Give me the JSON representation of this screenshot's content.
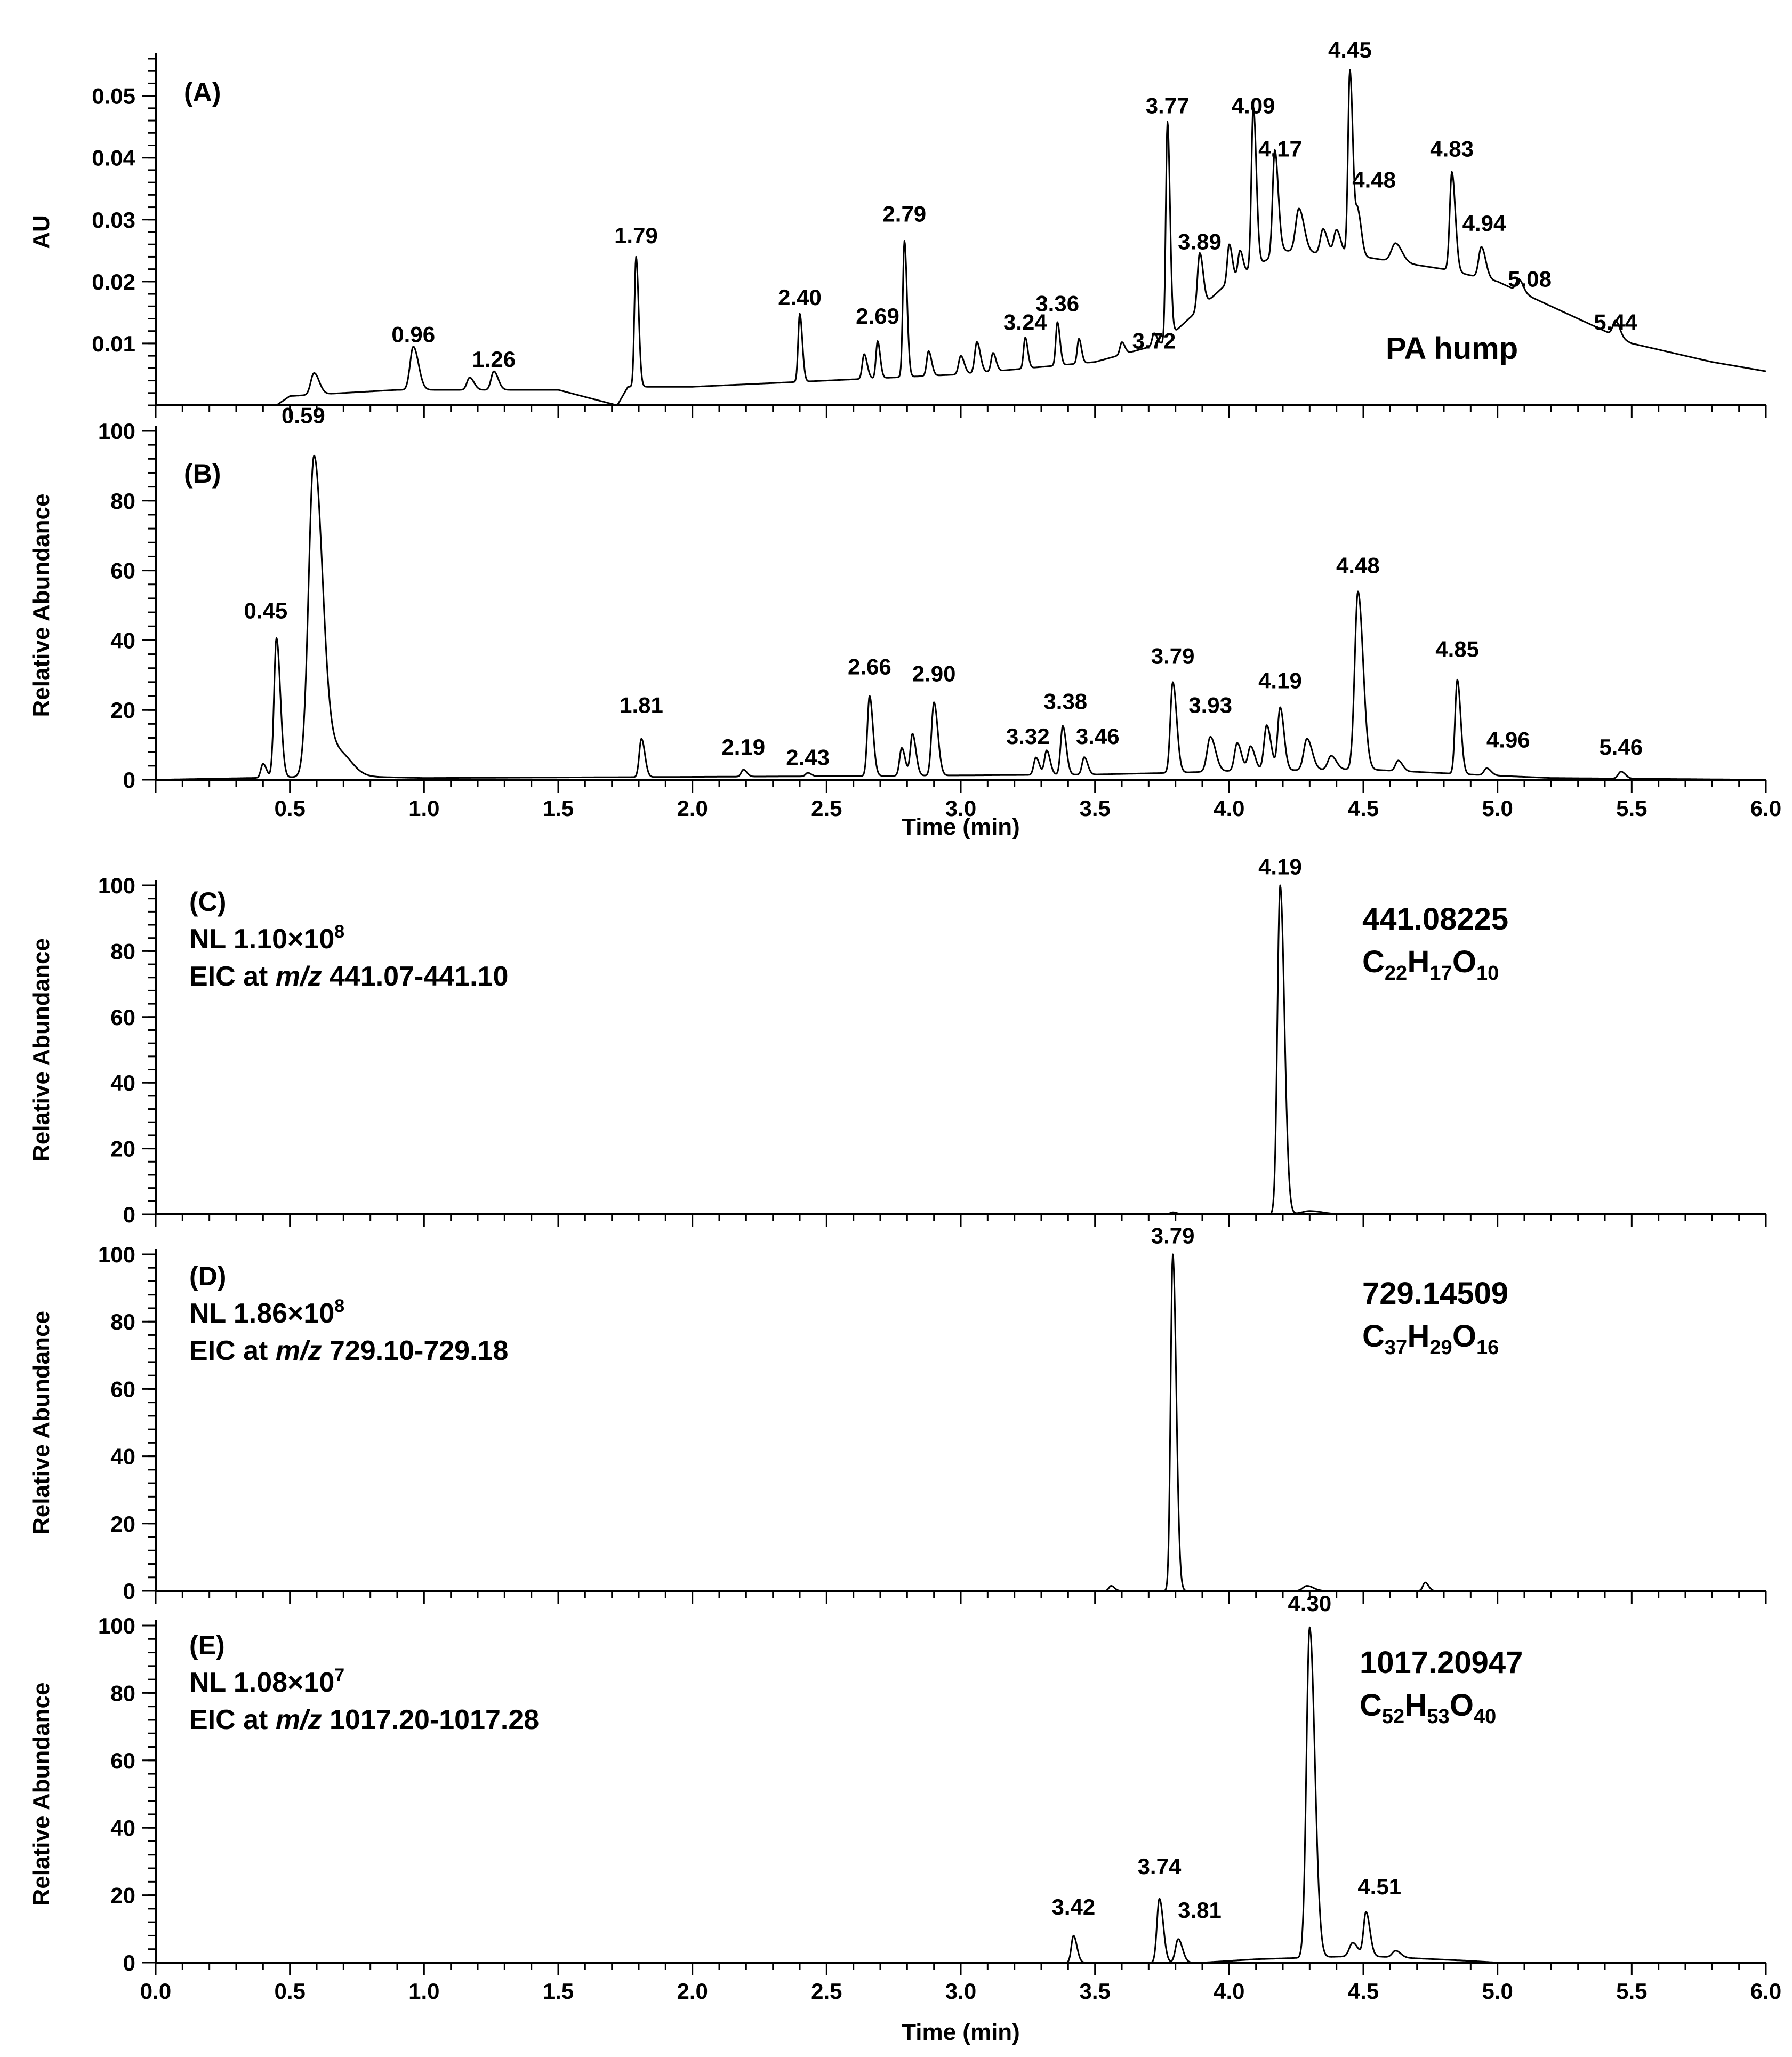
{
  "chart_data": [
    {
      "id": "A",
      "type": "line",
      "panel_label": "(A)",
      "ylabel": "AU",
      "xlabel": "",
      "xlim": [
        0,
        6
      ],
      "ylim": [
        0,
        0.056
      ],
      "yticks": [
        "0.01",
        "0.02",
        "0.03",
        "0.04",
        "0.05"
      ],
      "ytick_values": [
        0.01,
        0.02,
        0.03,
        0.04,
        0.05
      ],
      "xticks": [],
      "xtick_values": [],
      "baseline": [
        [
          0,
          0
        ],
        [
          0.45,
          0
        ],
        [
          0.5,
          0.0015
        ],
        [
          0.9,
          0.0025
        ],
        [
          1.5,
          0.0025
        ],
        [
          1.72,
          0
        ],
        [
          1.76,
          0.003
        ],
        [
          2.0,
          0.003
        ],
        [
          2.5,
          0.004
        ],
        [
          3.0,
          0.005
        ],
        [
          3.5,
          0.007
        ],
        [
          3.75,
          0.01
        ],
        [
          4.0,
          0.02
        ],
        [
          4.2,
          0.025
        ],
        [
          4.5,
          0.024
        ],
        [
          4.8,
          0.022
        ],
        [
          5.0,
          0.02
        ],
        [
          5.3,
          0.014
        ],
        [
          5.5,
          0.01
        ],
        [
          5.8,
          0.007
        ],
        [
          6.0,
          0.0055
        ]
      ],
      "peaks": [
        {
          "t": 0.59,
          "h": 0.0035,
          "w": 0.012
        },
        {
          "t": 0.96,
          "h": 0.007,
          "w": 0.012
        },
        {
          "t": 1.17,
          "h": 0.002,
          "w": 0.01
        },
        {
          "t": 1.26,
          "h": 0.003,
          "w": 0.01
        },
        {
          "t": 1.79,
          "h": 0.021,
          "w": 0.006
        },
        {
          "t": 2.4,
          "h": 0.011,
          "w": 0.006
        },
        {
          "t": 2.64,
          "h": 0.004,
          "w": 0.007
        },
        {
          "t": 2.69,
          "h": 0.006,
          "w": 0.006
        },
        {
          "t": 2.79,
          "h": 0.022,
          "w": 0.006
        },
        {
          "t": 2.88,
          "h": 0.004,
          "w": 0.007
        },
        {
          "t": 3.0,
          "h": 0.003,
          "w": 0.008
        },
        {
          "t": 3.06,
          "h": 0.005,
          "w": 0.008
        },
        {
          "t": 3.12,
          "h": 0.003,
          "w": 0.007
        },
        {
          "t": 3.24,
          "h": 0.005,
          "w": 0.006
        },
        {
          "t": 3.36,
          "h": 0.007,
          "w": 0.006
        },
        {
          "t": 3.44,
          "h": 0.004,
          "w": 0.006
        },
        {
          "t": 3.6,
          "h": 0.002,
          "w": 0.007
        },
        {
          "t": 3.72,
          "h": 0.002,
          "w": 0.007
        },
        {
          "t": 3.77,
          "h": 0.035,
          "w": 0.006
        },
        {
          "t": 3.89,
          "h": 0.009,
          "w": 0.008
        },
        {
          "t": 4.0,
          "h": 0.006,
          "w": 0.007
        },
        {
          "t": 4.04,
          "h": 0.004,
          "w": 0.007
        },
        {
          "t": 4.09,
          "h": 0.026,
          "w": 0.007
        },
        {
          "t": 4.17,
          "h": 0.017,
          "w": 0.008
        },
        {
          "t": 4.26,
          "h": 0.007,
          "w": 0.012
        },
        {
          "t": 4.35,
          "h": 0.004,
          "w": 0.01
        },
        {
          "t": 4.4,
          "h": 0.004,
          "w": 0.01
        },
        {
          "t": 4.45,
          "h": 0.03,
          "w": 0.007
        },
        {
          "t": 4.48,
          "h": 0.007,
          "w": 0.008
        },
        {
          "t": 4.62,
          "h": 0.003,
          "w": 0.015
        },
        {
          "t": 4.83,
          "h": 0.016,
          "w": 0.008
        },
        {
          "t": 4.94,
          "h": 0.005,
          "w": 0.01
        },
        {
          "t": 5.08,
          "h": 0.002,
          "w": 0.01
        },
        {
          "t": 5.44,
          "h": 0.0025,
          "w": 0.01
        }
      ],
      "peak_labels": [
        {
          "text": "0.96",
          "t": 0.96,
          "y": 0.0095
        },
        {
          "text": "1.26",
          "t": 1.26,
          "y": 0.0055
        },
        {
          "text": "1.79",
          "t": 1.79,
          "y": 0.0255
        },
        {
          "text": "2.40",
          "t": 2.4,
          "y": 0.0155
        },
        {
          "text": "2.69",
          "t": 2.69,
          "y": 0.0125
        },
        {
          "text": "2.79",
          "t": 2.79,
          "y": 0.029
        },
        {
          "text": "3.24",
          "t": 3.24,
          "y": 0.0115
        },
        {
          "text": "3.36",
          "t": 3.36,
          "y": 0.0145
        },
        {
          "text": "3.72",
          "t": 3.72,
          "y": 0.0085
        },
        {
          "text": "3.77",
          "t": 3.77,
          "y": 0.0465
        },
        {
          "text": "3.89",
          "t": 3.89,
          "y": 0.0245
        },
        {
          "text": "4.09",
          "t": 4.09,
          "y": 0.0465
        },
        {
          "text": "4.17",
          "t": 4.19,
          "y": 0.0395
        },
        {
          "text": "4.45",
          "t": 4.45,
          "y": 0.0555
        },
        {
          "text": "4.48",
          "t": 4.54,
          "y": 0.0345
        },
        {
          "text": "4.83",
          "t": 4.83,
          "y": 0.0395
        },
        {
          "text": "4.94",
          "t": 4.95,
          "y": 0.0275
        },
        {
          "text": "5.08",
          "t": 5.12,
          "y": 0.0185
        },
        {
          "text": "5.44",
          "t": 5.44,
          "y": 0.0115
        }
      ],
      "annotations": [
        {
          "text": "PA hump",
          "t": 4.83,
          "y": 0.0075
        }
      ]
    },
    {
      "id": "B",
      "type": "line",
      "panel_label": "(B)",
      "ylabel": "Relative Abundance",
      "xlabel": "Time  (min)",
      "xlim": [
        0,
        6
      ],
      "ylim": [
        0,
        100
      ],
      "yticks": [
        "0",
        "20",
        "40",
        "60",
        "80",
        "100"
      ],
      "ytick_values": [
        0,
        20,
        40,
        60,
        80,
        100
      ],
      "xticks": [
        "0.5",
        "1.0",
        "1.5",
        "2.0",
        "2.5",
        "3.0",
        "3.5",
        "4.0",
        "4.5",
        "5.0",
        "5.5",
        "6.0"
      ],
      "xtick_values": [
        0.5,
        1.0,
        1.5,
        2.0,
        2.5,
        3.0,
        3.5,
        4.0,
        4.5,
        5.0,
        5.5,
        6.0
      ],
      "baseline": [
        [
          0,
          0
        ],
        [
          0.7,
          1
        ],
        [
          1.0,
          0.5
        ],
        [
          2.5,
          1
        ],
        [
          3.5,
          1.5
        ],
        [
          3.8,
          2
        ],
        [
          4.0,
          2.5
        ],
        [
          4.5,
          3
        ],
        [
          4.9,
          1.5
        ],
        [
          5.2,
          0.5
        ],
        [
          6.0,
          0
        ]
      ],
      "peaks": [
        {
          "t": 0.4,
          "h": 4,
          "w": 0.008
        },
        {
          "t": 0.45,
          "h": 40,
          "w": 0.009
        },
        {
          "t": 0.59,
          "h": 92,
          "w": 0.02
        },
        {
          "t": 0.68,
          "h": 7,
          "w": 0.03
        },
        {
          "t": 1.81,
          "h": 11,
          "w": 0.008
        },
        {
          "t": 2.19,
          "h": 2,
          "w": 0.008
        },
        {
          "t": 2.43,
          "h": 1,
          "w": 0.008
        },
        {
          "t": 2.66,
          "h": 23,
          "w": 0.008
        },
        {
          "t": 2.78,
          "h": 8,
          "w": 0.008
        },
        {
          "t": 2.82,
          "h": 12,
          "w": 0.008
        },
        {
          "t": 2.9,
          "h": 21,
          "w": 0.009
        },
        {
          "t": 3.28,
          "h": 5,
          "w": 0.008
        },
        {
          "t": 3.32,
          "h": 7,
          "w": 0.008
        },
        {
          "t": 3.38,
          "h": 14,
          "w": 0.008
        },
        {
          "t": 3.46,
          "h": 5,
          "w": 0.008
        },
        {
          "t": 3.79,
          "h": 26,
          "w": 0.009
        },
        {
          "t": 3.93,
          "h": 10,
          "w": 0.012
        },
        {
          "t": 4.03,
          "h": 8,
          "w": 0.01
        },
        {
          "t": 4.08,
          "h": 7,
          "w": 0.01
        },
        {
          "t": 4.14,
          "h": 13,
          "w": 0.01
        },
        {
          "t": 4.19,
          "h": 18,
          "w": 0.009
        },
        {
          "t": 4.29,
          "h": 9,
          "w": 0.012
        },
        {
          "t": 4.38,
          "h": 4,
          "w": 0.012
        },
        {
          "t": 4.48,
          "h": 51,
          "w": 0.012
        },
        {
          "t": 4.63,
          "h": 3,
          "w": 0.01
        },
        {
          "t": 4.85,
          "h": 27,
          "w": 0.008
        },
        {
          "t": 4.96,
          "h": 2,
          "w": 0.01
        },
        {
          "t": 5.46,
          "h": 2,
          "w": 0.01
        }
      ],
      "peak_labels": [
        {
          "text": "0.59",
          "t": 0.55,
          "y": 101
        },
        {
          "text": "0.45",
          "t": 0.41,
          "y": 45
        },
        {
          "text": "1.81",
          "t": 1.81,
          "y": 18
        },
        {
          "text": "2.19",
          "t": 2.19,
          "y": 6
        },
        {
          "text": "2.43",
          "t": 2.43,
          "y": 3
        },
        {
          "text": "2.66",
          "t": 2.66,
          "y": 29
        },
        {
          "text": "2.90",
          "t": 2.9,
          "y": 27
        },
        {
          "text": "3.32",
          "t": 3.25,
          "y": 9
        },
        {
          "text": "3.38",
          "t": 3.39,
          "y": 19
        },
        {
          "text": "3.46",
          "t": 3.51,
          "y": 9
        },
        {
          "text": "3.79",
          "t": 3.79,
          "y": 32
        },
        {
          "text": "3.93",
          "t": 3.93,
          "y": 18
        },
        {
          "text": "4.19",
          "t": 4.19,
          "y": 25
        },
        {
          "text": "4.48",
          "t": 4.48,
          "y": 58
        },
        {
          "text": "4.85",
          "t": 4.85,
          "y": 34
        },
        {
          "text": "4.96",
          "t": 5.04,
          "y": 8
        },
        {
          "text": "5.46",
          "t": 5.46,
          "y": 6
        }
      ],
      "annotations": []
    },
    {
      "id": "C",
      "type": "line",
      "panel_label": "(C)",
      "ylabel": "Relative Abundance",
      "xlabel": "",
      "xlim": [
        0,
        6
      ],
      "ylim": [
        0,
        100
      ],
      "info": {
        "nl": "NL 1.10×10",
        "nl_exp": "8",
        "eic_prefix": "EIC at ",
        "eic_mz": "m/z",
        "eic_range": " 441.07-441.10"
      },
      "mass": "441.08225",
      "formula": [
        {
          "t": "C",
          "s": "22"
        },
        {
          "t": "H",
          "s": "17"
        },
        {
          "t": "O",
          "s": "10"
        }
      ],
      "yticks": [
        "0",
        "20",
        "40",
        "60",
        "80",
        "100"
      ],
      "ytick_values": [
        0,
        20,
        40,
        60,
        80,
        100
      ],
      "xticks": [],
      "xtick_values": [],
      "baseline": [
        [
          0,
          0
        ],
        [
          6,
          0
        ]
      ],
      "peaks": [
        {
          "t": 4.19,
          "h": 100,
          "w": 0.01
        },
        {
          "t": 3.79,
          "h": 0.6,
          "w": 0.01
        },
        {
          "t": 4.3,
          "h": 1,
          "w": 0.03
        }
      ],
      "peak_labels": [
        {
          "text": "4.19",
          "t": 4.19,
          "y": 102
        }
      ],
      "annotations": []
    },
    {
      "id": "D",
      "type": "line",
      "panel_label": "(D)",
      "ylabel": "Relative Abundance",
      "xlabel": "",
      "xlim": [
        0,
        6
      ],
      "ylim": [
        0,
        100
      ],
      "info": {
        "nl": "NL 1.86×10",
        "nl_exp": "8",
        "eic_prefix": "EIC at ",
        "eic_mz": "m/z",
        "eic_range": " 729.10-729.18"
      },
      "mass": "729.14509",
      "formula": [
        {
          "t": "C",
          "s": "37"
        },
        {
          "t": "H",
          "s": "29"
        },
        {
          "t": "O",
          "s": "16"
        }
      ],
      "yticks": [
        "0",
        "20",
        "40",
        "60",
        "80",
        "100"
      ],
      "ytick_values": [
        0,
        20,
        40,
        60,
        80,
        100
      ],
      "xticks": [],
      "xtick_values": [],
      "baseline": [
        [
          0,
          0
        ],
        [
          6,
          0
        ]
      ],
      "peaks": [
        {
          "t": 3.79,
          "h": 100,
          "w": 0.008
        },
        {
          "t": 3.56,
          "h": 1.5,
          "w": 0.008
        },
        {
          "t": 4.29,
          "h": 1.5,
          "w": 0.015
        },
        {
          "t": 4.73,
          "h": 2.5,
          "w": 0.008
        }
      ],
      "peak_labels": [
        {
          "text": "3.79",
          "t": 3.79,
          "y": 102
        }
      ],
      "annotations": []
    },
    {
      "id": "E",
      "type": "line",
      "panel_label": "(E)",
      "ylabel": "Relative Abundance",
      "xlabel": "Time  (min)",
      "xlim": [
        0,
        6
      ],
      "ylim": [
        0,
        100
      ],
      "info": {
        "nl": "NL 1.08×10",
        "nl_exp": "7",
        "eic_prefix": "EIC at ",
        "eic_mz": "m/z",
        "eic_range": " 1017.20-1017.28"
      },
      "mass": "1017.20947",
      "formula": [
        {
          "t": "C",
          "s": "52"
        },
        {
          "t": "H",
          "s": "53"
        },
        {
          "t": "O",
          "s": "40"
        }
      ],
      "yticks": [
        "0",
        "20",
        "40",
        "60",
        "80",
        "100"
      ],
      "ytick_values": [
        0,
        20,
        40,
        60,
        80,
        100
      ],
      "xticks": [
        "0.0",
        "0.5",
        "1.0",
        "1.5",
        "2.0",
        "2.5",
        "3.0",
        "3.5",
        "4.0",
        "4.5",
        "5.0",
        "5.5",
        "6.0"
      ],
      "xtick_values": [
        0.0,
        0.5,
        1.0,
        1.5,
        2.0,
        2.5,
        3.0,
        3.5,
        4.0,
        4.5,
        5.0,
        5.5,
        6.0
      ],
      "baseline": [
        [
          0,
          0
        ],
        [
          3.9,
          0
        ],
        [
          4.1,
          1
        ],
        [
          4.5,
          2
        ],
        [
          4.9,
          0.5
        ],
        [
          5.0,
          0
        ],
        [
          6,
          0
        ]
      ],
      "peaks": [
        {
          "t": 3.42,
          "h": 8,
          "w": 0.008
        },
        {
          "t": 3.74,
          "h": 19,
          "w": 0.009
        },
        {
          "t": 3.81,
          "h": 7,
          "w": 0.01
        },
        {
          "t": 4.3,
          "h": 98,
          "w": 0.012
        },
        {
          "t": 4.46,
          "h": 4,
          "w": 0.012
        },
        {
          "t": 4.51,
          "h": 13,
          "w": 0.009
        },
        {
          "t": 4.62,
          "h": 2,
          "w": 0.012
        }
      ],
      "peak_labels": [
        {
          "text": "3.42",
          "t": 3.42,
          "y": 13
        },
        {
          "text": "3.74",
          "t": 3.74,
          "y": 25
        },
        {
          "text": "3.81",
          "t": 3.89,
          "y": 12
        },
        {
          "text": "4.30",
          "t": 4.3,
          "y": 103
        },
        {
          "text": "4.51",
          "t": 4.56,
          "y": 19
        }
      ],
      "annotations": []
    }
  ]
}
